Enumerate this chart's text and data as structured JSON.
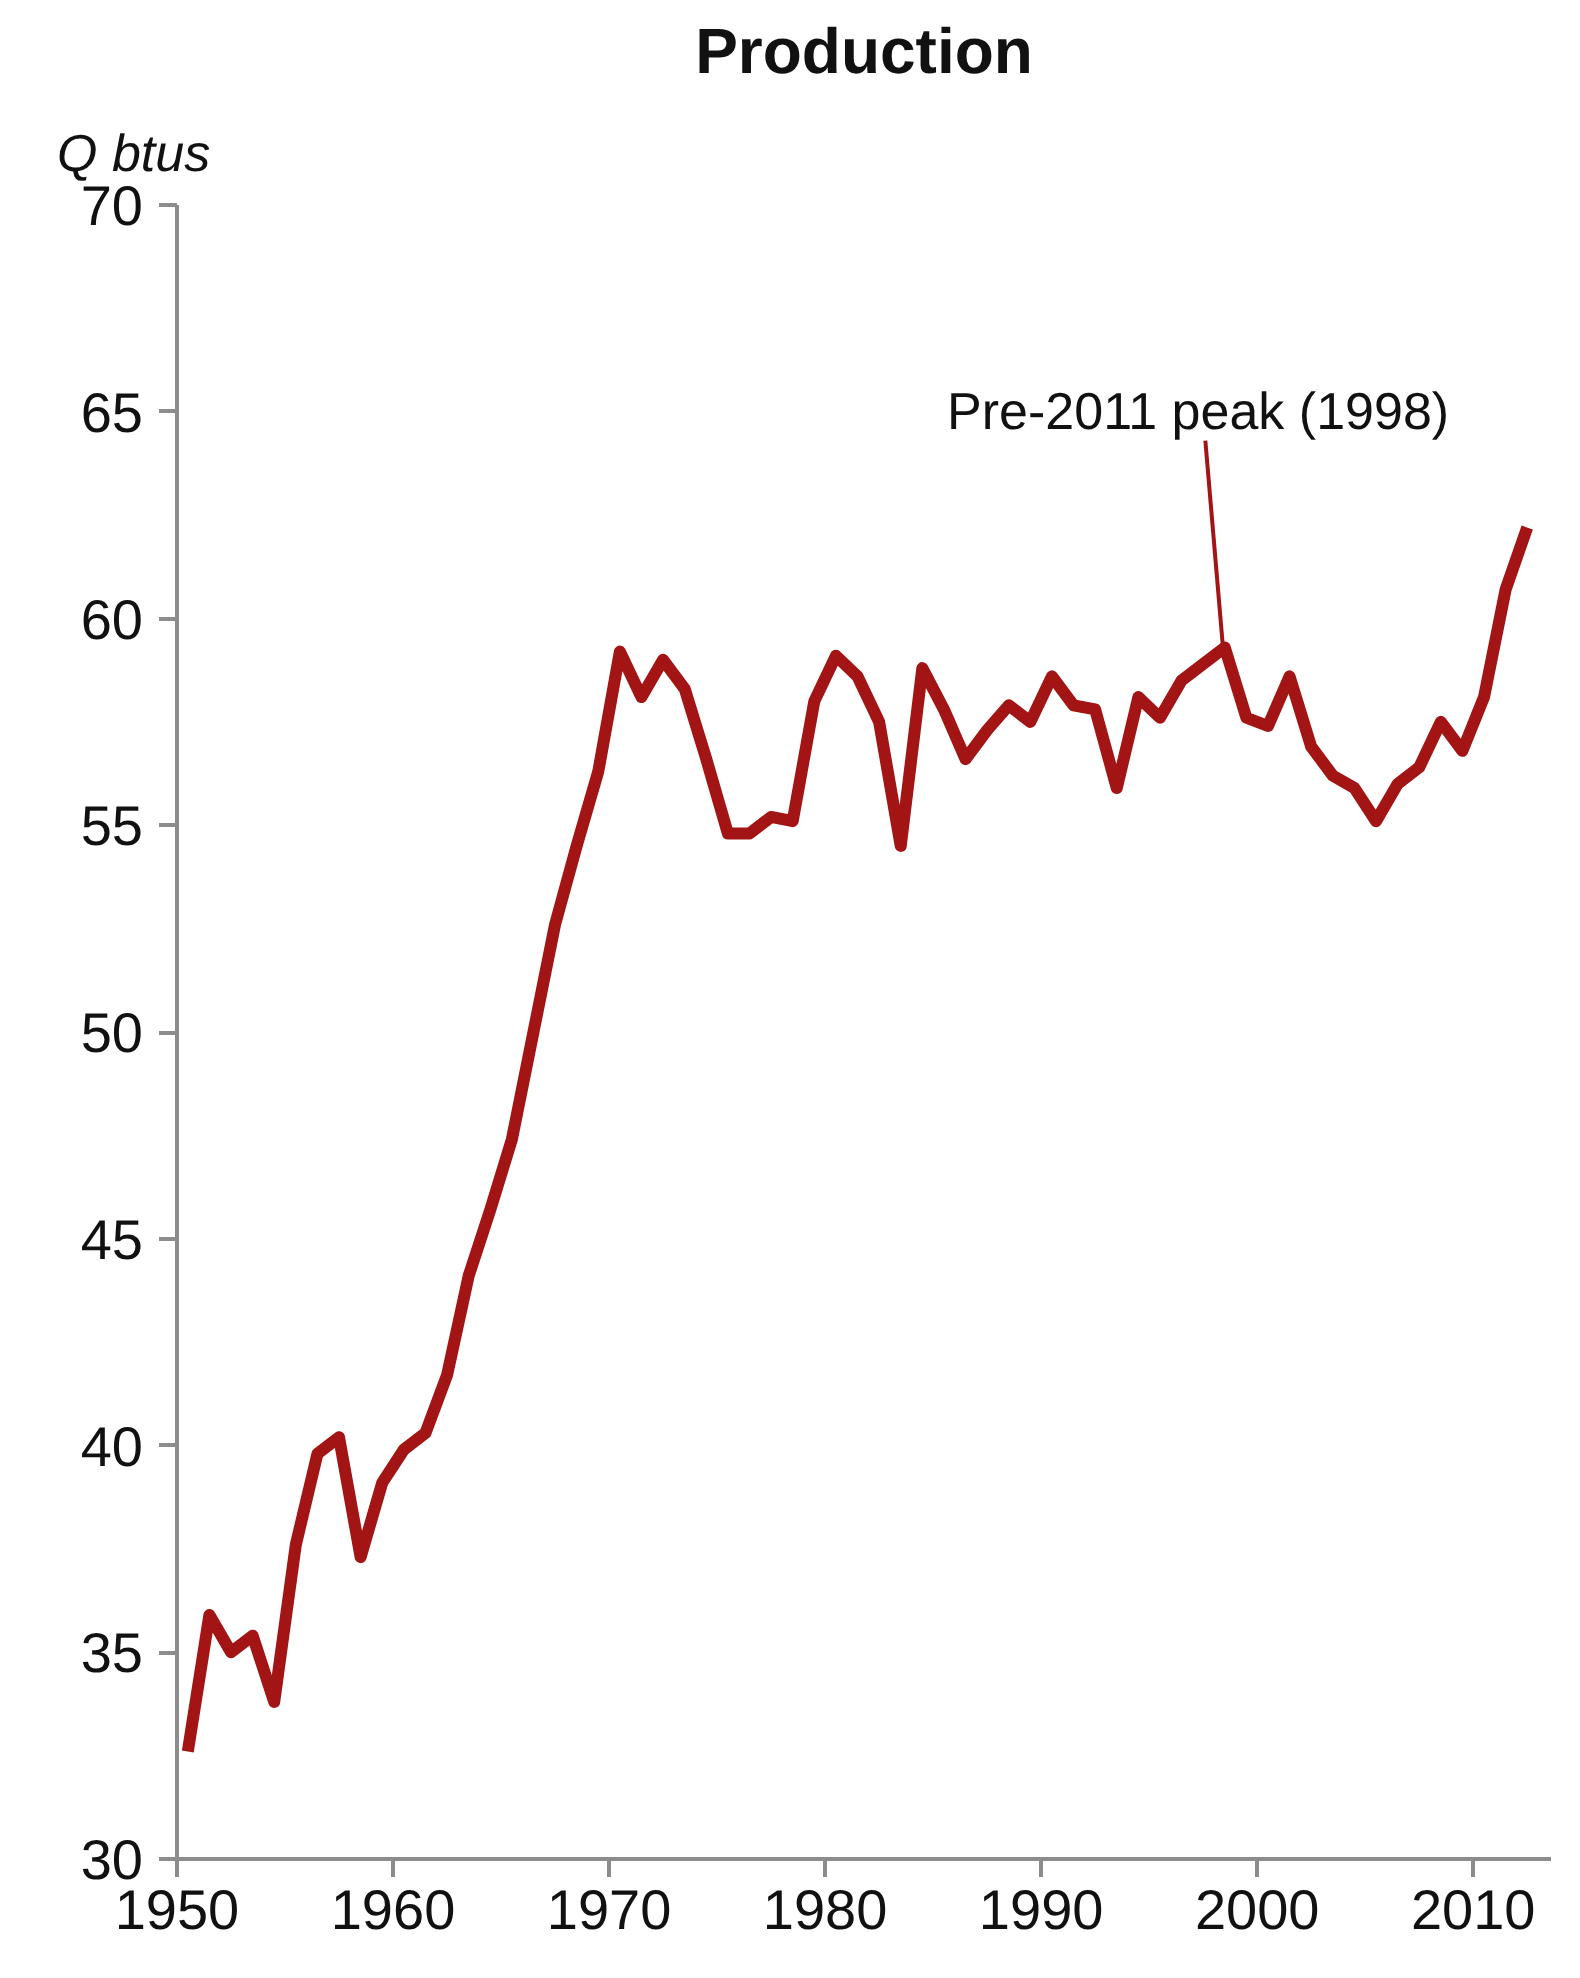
{
  "chart_data": {
    "type": "line",
    "title": "Production",
    "ylabel": "Q btus",
    "x": [
      1950.5,
      1951.5,
      1952.5,
      1953.5,
      1954.5,
      1955.5,
      1956.5,
      1957.5,
      1958.5,
      1959.5,
      1960.5,
      1961.5,
      1962.5,
      1963.5,
      1964.5,
      1965.5,
      1966.5,
      1967.5,
      1968.5,
      1969.5,
      1970.5,
      1971.5,
      1972.5,
      1973.5,
      1974.5,
      1975.5,
      1976.5,
      1977.5,
      1978.5,
      1979.5,
      1980.5,
      1981.5,
      1982.5,
      1983.5,
      1984.5,
      1985.5,
      1986.5,
      1987.5,
      1988.5,
      1989.5,
      1990.5,
      1991.5,
      1992.5,
      1993.5,
      1994.5,
      1995.5,
      1996.5,
      1997.5,
      1998.5,
      1999.5,
      2000.5,
      2001.5,
      2002.5,
      2003.5,
      2004.5,
      2005.5,
      2006.5,
      2007.5,
      2008.5,
      2009.5,
      2010.5,
      2011.5,
      2012.5
    ],
    "series": [
      {
        "color": "#a31515",
        "values": [
          32.6,
          35.9,
          35.0,
          35.4,
          33.8,
          37.6,
          39.8,
          40.2,
          37.3,
          39.1,
          39.9,
          40.3,
          41.7,
          44.1,
          45.7,
          47.4,
          50.0,
          52.6,
          54.5,
          56.3,
          59.2,
          58.1,
          59.0,
          58.3,
          56.6,
          54.8,
          54.8,
          55.2,
          55.1,
          58.0,
          59.1,
          58.6,
          57.5,
          54.5,
          58.8,
          57.8,
          56.6,
          57.3,
          57.9,
          57.5,
          58.6,
          57.9,
          57.8,
          55.9,
          58.1,
          57.6,
          58.5,
          58.9,
          59.3,
          57.6,
          57.4,
          58.6,
          56.9,
          56.2,
          55.9,
          55.1,
          56.0,
          56.4,
          57.5,
          56.8,
          58.1,
          60.7,
          62.2
        ]
      }
    ],
    "xlim": [
      1950,
      2013.6
    ],
    "xticks": [
      1950,
      1960,
      1970,
      1980,
      1990,
      2000,
      2010
    ],
    "ylim": [
      30,
      70
    ],
    "yticks": [
      30,
      35,
      40,
      45,
      50,
      55,
      60,
      65,
      70
    ],
    "annotations": [
      {
        "text": "Pre-2011  peak (1998)",
        "x": 1998.5,
        "y": 59.3
      }
    ],
    "grid": false,
    "marker": "none",
    "line_style": "solid"
  }
}
